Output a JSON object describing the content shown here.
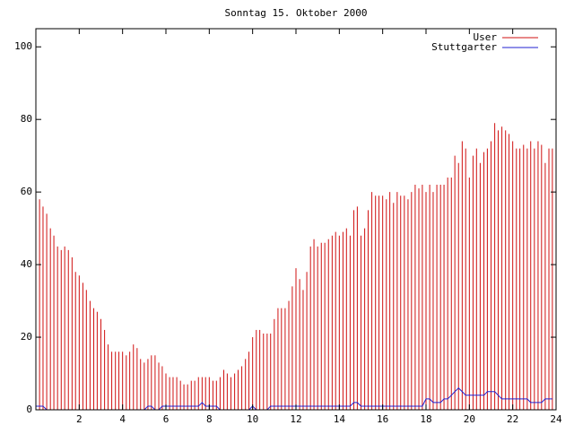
{
  "chart_data": {
    "type": "impulses",
    "title": "Sonntag 15. Oktober 2000",
    "x": [
      0,
      0.17,
      0.33,
      0.5,
      0.67,
      0.83,
      1,
      1.17,
      1.33,
      1.5,
      1.67,
      1.83,
      2,
      2.17,
      2.33,
      2.5,
      2.67,
      2.83,
      3,
      3.17,
      3.33,
      3.5,
      3.67,
      3.83,
      4,
      4.17,
      4.33,
      4.5,
      4.67,
      4.83,
      5,
      5.17,
      5.33,
      5.5,
      5.67,
      5.83,
      6,
      6.17,
      6.33,
      6.5,
      6.67,
      6.83,
      7,
      7.17,
      7.33,
      7.5,
      7.67,
      7.83,
      8,
      8.17,
      8.33,
      8.5,
      8.67,
      8.83,
      9,
      9.17,
      9.33,
      9.5,
      9.67,
      9.83,
      10,
      10.17,
      10.33,
      10.5,
      10.67,
      10.83,
      11,
      11.17,
      11.33,
      11.5,
      11.67,
      11.83,
      12,
      12.17,
      12.33,
      12.5,
      12.67,
      12.83,
      13,
      13.17,
      13.33,
      13.5,
      13.67,
      13.83,
      14,
      14.17,
      14.33,
      14.5,
      14.67,
      14.83,
      15,
      15.17,
      15.33,
      15.5,
      15.67,
      15.83,
      16,
      16.17,
      16.33,
      16.5,
      16.67,
      16.83,
      17,
      17.17,
      17.33,
      17.5,
      17.67,
      17.83,
      18,
      18.17,
      18.33,
      18.5,
      18.67,
      18.83,
      19,
      19.17,
      19.33,
      19.5,
      19.67,
      19.83,
      20,
      20.17,
      20.33,
      20.5,
      20.67,
      20.83,
      21,
      21.17,
      21.33,
      21.5,
      21.67,
      21.83,
      22,
      22.17,
      22.33,
      22.5,
      22.67,
      22.83,
      23,
      23.17,
      23.33,
      23.5,
      23.67,
      23.83
    ],
    "series": [
      {
        "name": "User",
        "color": "#d01010",
        "style": "impulses",
        "values": [
          55,
          58,
          56,
          54,
          50,
          48,
          45,
          44,
          45,
          44,
          42,
          38,
          37,
          35,
          33,
          30,
          28,
          27,
          25,
          22,
          18,
          16,
          16,
          16,
          16,
          15,
          16,
          18,
          17,
          14,
          13,
          14,
          15,
          15,
          13,
          12,
          10,
          9,
          9,
          9,
          8,
          7,
          7,
          8,
          8,
          9,
          9,
          9,
          9,
          8,
          8,
          9,
          11,
          10,
          9,
          10,
          11,
          12,
          14,
          16,
          20,
          22,
          22,
          21,
          21,
          21,
          25,
          28,
          28,
          28,
          30,
          34,
          39,
          36,
          33,
          38,
          45,
          47,
          45,
          46,
          46,
          47,
          48,
          49,
          48,
          49,
          50,
          48,
          55,
          56,
          48,
          50,
          55,
          60,
          59,
          59,
          59,
          58,
          60,
          57,
          60,
          59,
          59,
          58,
          60,
          62,
          61,
          62,
          60,
          62,
          60,
          62,
          62,
          62,
          64,
          64,
          70,
          68,
          74,
          72,
          64,
          70,
          72,
          68,
          71,
          72,
          74,
          79,
          77,
          78,
          77,
          76,
          74,
          72,
          72,
          73,
          72,
          74,
          72,
          74,
          73,
          68,
          72,
          72
        ]
      },
      {
        "name": "Stuttgarter",
        "color": "#2020d0",
        "style": "line",
        "values": [
          1,
          1,
          1,
          0,
          0,
          0,
          0,
          0,
          0,
          0,
          0,
          0,
          0,
          0,
          0,
          0,
          0,
          0,
          0,
          0,
          0,
          0,
          0,
          0,
          0,
          0,
          0,
          0,
          0,
          0,
          0,
          1,
          1,
          0,
          0,
          1,
          1,
          1,
          1,
          1,
          1,
          1,
          1,
          1,
          1,
          1,
          2,
          1,
          1,
          1,
          1,
          0,
          0,
          0,
          0,
          0,
          0,
          0,
          0,
          0,
          1,
          0,
          0,
          0,
          0,
          1,
          1,
          1,
          1,
          1,
          1,
          1,
          1,
          1,
          1,
          1,
          1,
          1,
          1,
          1,
          1,
          1,
          1,
          1,
          1,
          1,
          1,
          1,
          2,
          2,
          1,
          1,
          1,
          1,
          1,
          1,
          1,
          1,
          1,
          1,
          1,
          1,
          1,
          1,
          1,
          1,
          1,
          1,
          3,
          3,
          2,
          2,
          2,
          3,
          3,
          4,
          5,
          6,
          5,
          4,
          4,
          4,
          4,
          4,
          4,
          5,
          5,
          5,
          4,
          3,
          3,
          3,
          3,
          3,
          3,
          3,
          3,
          2,
          2,
          2,
          2,
          3,
          3,
          3
        ]
      }
    ],
    "xlim": [
      0,
      24
    ],
    "xticks": [
      2,
      4,
      6,
      8,
      10,
      12,
      14,
      16,
      18,
      20,
      22,
      24
    ],
    "ylim": [
      0,
      105
    ],
    "yticks": [
      0,
      20,
      40,
      60,
      80,
      100
    ],
    "legend": "top-right"
  }
}
